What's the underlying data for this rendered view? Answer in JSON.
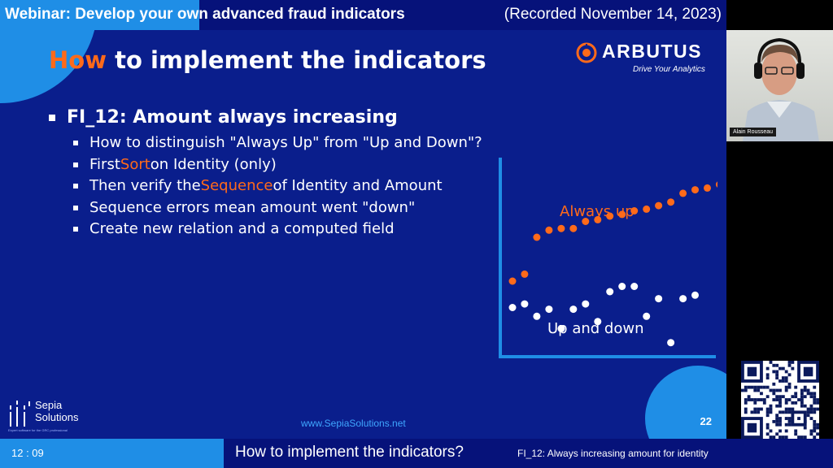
{
  "header": {
    "title": "Webinar: Develop your own advanced fraud indicators",
    "recorded": "(Recorded November 14, 2023)"
  },
  "slide": {
    "title_accent": "How",
    "title_rest": " to implement the indicators",
    "logo": {
      "name": "ARBUTUS",
      "tagline": "Drive Your Analytics"
    },
    "bullet_main": "FI_12: Amount always increasing",
    "sub_bullets": [
      {
        "before": "How to distinguish \"Always Up\" from \"Up and Down\"?",
        "highlight": "",
        "after": ""
      },
      {
        "before": "First ",
        "highlight": "Sort",
        "after": " on Identity (only)"
      },
      {
        "before": "Then verify the ",
        "highlight": "Sequence",
        "after": " of Identity and Amount"
      },
      {
        "before": "Sequence errors mean amount went \"down\"",
        "highlight": "",
        "after": ""
      },
      {
        "before": "Create new relation and a computed field",
        "highlight": "",
        "after": ""
      }
    ],
    "brand": {
      "line1": "Sepia",
      "line2": "Solutions",
      "tagline": "Expert software for the GRC professional"
    },
    "website": "www.SepiaSolutions.net",
    "page_number": "22"
  },
  "chart_data": {
    "type": "scatter",
    "series": [
      {
        "name": "Always up",
        "color": "#ff6a1a",
        "points": [
          [
            1,
            1
          ],
          [
            2,
            1.4
          ],
          [
            3,
            3.5
          ],
          [
            4,
            3.9
          ],
          [
            5,
            4.0
          ],
          [
            6,
            4.0
          ],
          [
            7,
            4.4
          ],
          [
            8,
            4.5
          ],
          [
            9,
            4.7
          ],
          [
            10,
            4.8
          ],
          [
            11,
            5.0
          ],
          [
            12,
            5.1
          ],
          [
            13,
            5.3
          ],
          [
            14,
            5.5
          ],
          [
            15,
            6.0
          ],
          [
            16,
            6.2
          ],
          [
            17,
            6.3
          ],
          [
            18,
            6.5
          ]
        ]
      },
      {
        "name": "Up and down",
        "color": "#ffffff",
        "points": [
          [
            1,
            -0.5
          ],
          [
            2,
            -0.3
          ],
          [
            3,
            -1.0
          ],
          [
            4,
            -0.6
          ],
          [
            5,
            -1.7
          ],
          [
            6,
            -0.6
          ],
          [
            7,
            -0.3
          ],
          [
            8,
            -1.3
          ],
          [
            9,
            0.4
          ],
          [
            10,
            0.7
          ],
          [
            11,
            0.7
          ],
          [
            12,
            -1.0
          ],
          [
            13,
            0.0
          ],
          [
            14,
            -2.5
          ],
          [
            15,
            0.0
          ],
          [
            16,
            0.2
          ]
        ]
      }
    ],
    "xlim": [
      0,
      17.5
    ],
    "ylim": [
      -3.3,
      7.8
    ]
  },
  "webcam": {
    "speaker": "Alain Rousseau"
  },
  "footer": {
    "time": "12 : 09",
    "section": "How to implement the indicators?",
    "subsection": "FI_12: Always increasing amount for identity"
  }
}
